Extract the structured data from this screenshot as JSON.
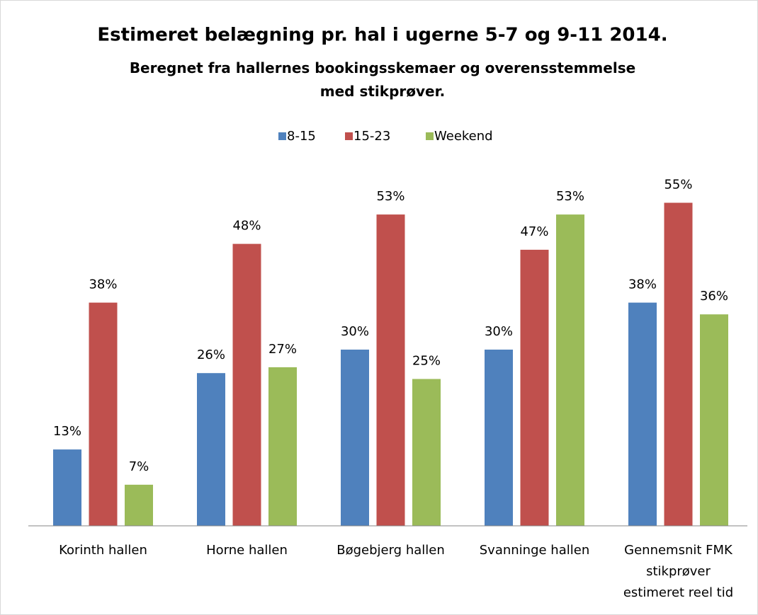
{
  "chart_data": {
    "type": "bar",
    "title": "Estimeret belægning pr. hal i ugerne 5-7 og 9-11 2014.",
    "subtitle": "Beregnet fra hallernes bookingsskemaer og overensstemmelse med stikprøver.",
    "categories": [
      "Korinth hallen",
      "Horne hallen",
      "Bøgebjerg hallen",
      "Svanninge hallen",
      "Gennemsnit FMK stikprøver estimeret reel tid"
    ],
    "series": [
      {
        "name": "8-15",
        "color": "#4f81bd",
        "values": [
          13,
          26,
          30,
          30,
          38
        ],
        "value_labels": [
          "13%",
          "26%",
          "30%",
          "30%",
          "38%"
        ]
      },
      {
        "name": "15-23",
        "color": "#c0504d",
        "values": [
          38,
          48,
          53,
          47,
          55
        ],
        "value_labels": [
          "38%",
          "48%",
          "53%",
          "47%",
          "55%"
        ]
      },
      {
        "name": "Weekend",
        "color": "#9bbb59",
        "values": [
          7,
          27,
          25,
          53,
          36
        ],
        "value_labels": [
          "7%",
          "27%",
          "25%",
          "53%",
          "36%"
        ]
      }
    ],
    "ylim": [
      0,
      60
    ],
    "legend": "top"
  }
}
